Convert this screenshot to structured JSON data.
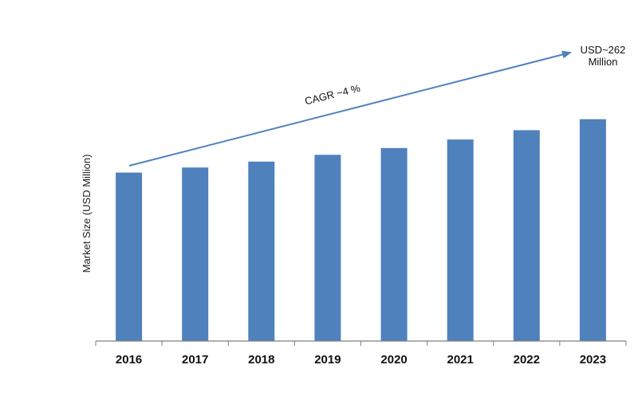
{
  "chart_data": {
    "type": "bar",
    "title": "",
    "xlabel": "",
    "ylabel": "Market Size (USD Million)",
    "categories": [
      "2016",
      "2017",
      "2018",
      "2019",
      "2020",
      "2021",
      "2022",
      "2023"
    ],
    "values": [
      199,
      205,
      212,
      220,
      228,
      238,
      249,
      262
    ],
    "ylim": [
      0,
      320
    ],
    "grid": false,
    "bar_color": "#4f81bd",
    "arrow_color": "#4f81bd",
    "annotations": {
      "cagr": "CAGR ~4 %",
      "end_value_line1": "USD~262",
      "end_value_line2": "Million"
    }
  }
}
